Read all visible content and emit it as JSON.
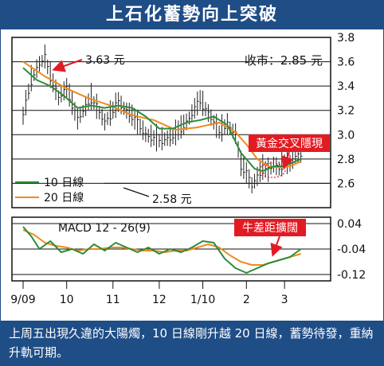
{
  "title": "上石化蓄勢向上突破",
  "caption": "上周五出現久違的大陽燭，10 日線剛升越 20 日線，蓄勢待發，重納升軌可期。",
  "colors": {
    "brand_blue": "#1f4d86",
    "ma10": "#2e8b3a",
    "ma20": "#f08a1e",
    "price": "#222222",
    "label_red": "#e21b23",
    "arrow_red": "#e21b23"
  },
  "chart_data": [
    {
      "type": "candlestick",
      "title": "",
      "ylim": [
        2.4,
        3.8
      ],
      "y_ticks": [
        "3.8",
        "3.6",
        "3.4",
        "3.2",
        "3.0",
        "2.8",
        "2.6"
      ],
      "x_tick_labels": [
        "9/09",
        "10",
        "11",
        "12",
        "1/10",
        "2",
        "3"
      ],
      "close_label": "收市：2.85 元",
      "annotations": {
        "high": "3.63 元",
        "low": "2.58 元",
        "signal": "黃金交叉隱現"
      },
      "series": [
        {
          "name": "10 日線",
          "x": [
            0,
            5,
            10,
            15,
            20,
            25,
            30,
            35,
            40,
            45,
            50,
            55,
            60,
            65,
            70,
            75,
            80,
            85,
            88,
            90,
            92,
            95,
            98,
            102
          ],
          "values": [
            3.55,
            3.45,
            3.4,
            3.32,
            3.22,
            3.24,
            3.22,
            3.24,
            3.22,
            3.15,
            3.05,
            3.05,
            3.1,
            3.12,
            3.15,
            3.08,
            2.85,
            2.72,
            2.7,
            2.72,
            2.74,
            2.74,
            2.76,
            2.8
          ]
        },
        {
          "name": "20 日線",
          "x": [
            0,
            8,
            16,
            24,
            32,
            40,
            48,
            56,
            64,
            72,
            78,
            82,
            86,
            90,
            94,
            98,
            102
          ],
          "values": [
            3.6,
            3.48,
            3.38,
            3.3,
            3.24,
            3.16,
            3.12,
            3.04,
            3.06,
            3.1,
            3.02,
            2.92,
            2.8,
            2.74,
            2.73,
            2.74,
            2.78
          ]
        },
        {
          "name": "price",
          "x": [
            0,
            3,
            6,
            8,
            10,
            13,
            16,
            20,
            25,
            30,
            35,
            40,
            45,
            50,
            55,
            60,
            65,
            70,
            72,
            75,
            78,
            80,
            82,
            84,
            86,
            88,
            90,
            92,
            94,
            96,
            98,
            100,
            102
          ],
          "values": [
            3.15,
            3.45,
            3.58,
            3.63,
            3.48,
            3.3,
            3.38,
            3.12,
            3.3,
            3.1,
            3.26,
            3.15,
            3.0,
            2.95,
            2.98,
            3.1,
            3.28,
            3.1,
            3.02,
            3.08,
            3.0,
            2.75,
            2.68,
            2.58,
            2.65,
            2.72,
            2.7,
            2.75,
            2.72,
            2.78,
            2.76,
            2.82,
            2.85
          ]
        }
      ]
    },
    {
      "type": "line",
      "title": "MACD 12 - 26(9)",
      "ylim": [
        -0.14,
        0.06
      ],
      "y_ticks": [
        "0.04",
        "-0.04",
        "-0.12"
      ],
      "annotations": {
        "signal": "牛差距擴闊"
      },
      "series": [
        {
          "name": "MACD",
          "x": [
            0,
            3,
            6,
            10,
            14,
            18,
            22,
            26,
            30,
            34,
            38,
            42,
            46,
            50,
            54,
            58,
            62,
            66,
            70,
            74,
            78,
            82,
            86,
            90,
            94,
            98,
            102
          ],
          "values": [
            0.03,
            0.0,
            -0.04,
            -0.015,
            -0.05,
            -0.04,
            -0.055,
            -0.025,
            -0.045,
            -0.02,
            -0.035,
            -0.05,
            -0.035,
            -0.055,
            -0.04,
            -0.05,
            -0.035,
            -0.015,
            -0.02,
            -0.07,
            -0.1,
            -0.115,
            -0.1,
            -0.085,
            -0.075,
            -0.065,
            -0.04
          ]
        },
        {
          "name": "Signal",
          "x": [
            0,
            4,
            8,
            12,
            16,
            20,
            24,
            28,
            32,
            36,
            40,
            44,
            48,
            52,
            56,
            60,
            64,
            68,
            72,
            76,
            80,
            84,
            88,
            92,
            96,
            100,
            102
          ],
          "values": [
            0.02,
            0.005,
            -0.02,
            -0.03,
            -0.035,
            -0.045,
            -0.04,
            -0.04,
            -0.035,
            -0.035,
            -0.04,
            -0.045,
            -0.045,
            -0.05,
            -0.045,
            -0.045,
            -0.035,
            -0.025,
            -0.035,
            -0.06,
            -0.08,
            -0.09,
            -0.09,
            -0.08,
            -0.07,
            -0.06,
            -0.055
          ]
        }
      ]
    }
  ]
}
